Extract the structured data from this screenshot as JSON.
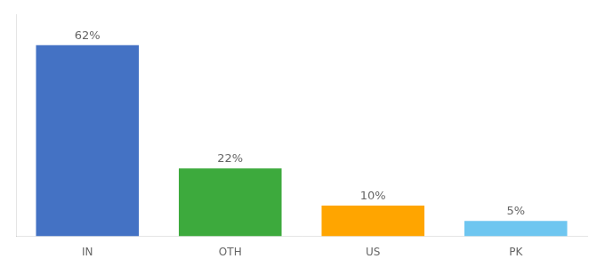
{
  "chart_data": {
    "type": "bar",
    "categories": [
      "IN",
      "OTH",
      "US",
      "PK"
    ],
    "values": [
      62,
      22,
      10,
      5
    ],
    "value_labels": [
      "62%",
      "22%",
      "10%",
      "5%"
    ],
    "colors": [
      "#4472C4",
      "#3DAA3D",
      "#FFA500",
      "#6EC6F0"
    ],
    "ylim": [
      0,
      72
    ],
    "data_labels": true,
    "tick_labels": "x",
    "grid": false
  }
}
